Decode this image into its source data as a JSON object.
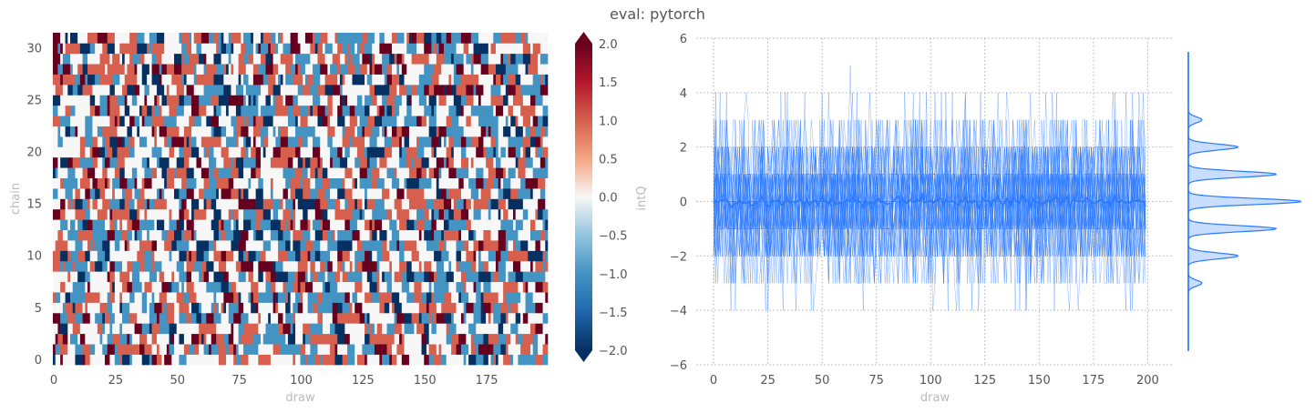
{
  "figure": {
    "suptitle": "eval: pytorch"
  },
  "chart_data": [
    {
      "type": "heatmap",
      "xlabel": "draw",
      "ylabel": "chain",
      "xticks": [
        0,
        25,
        50,
        75,
        100,
        125,
        150,
        175
      ],
      "yticks": [
        0,
        5,
        10,
        15,
        20,
        25,
        30
      ],
      "n_draws": 200,
      "n_chains": 32,
      "values_description_note": "",
      "colorbar": {
        "label": "intQ",
        "ticks": [
          2.0,
          1.5,
          1.0,
          0.5,
          0.0,
          -0.5,
          -1.0,
          -1.5,
          -2.0
        ],
        "tick_labels": [
          "2.0",
          "1.5",
          "1.0",
          "0.5",
          "0.0",
          "−0.5",
          "−1.0",
          "−1.5",
          "−2.0"
        ],
        "vmin": -2.0,
        "vmax": 2.0,
        "extend": "both",
        "colormap": [
          "#053061",
          "#2166ac",
          "#4393c3",
          "#92c5de",
          "#f7f7f7",
          "#f4a582",
          "#d6604d",
          "#b2182b",
          "#67001f"
        ]
      },
      "value_levels": [
        -2,
        -1,
        0,
        1,
        2
      ],
      "value_weights": [
        0.1,
        0.24,
        0.32,
        0.24,
        0.1
      ]
    },
    {
      "type": "line",
      "xlabel": "draw",
      "ylabel": "",
      "xlim": [
        0,
        199
      ],
      "ylim": [
        -6,
        6
      ],
      "xticks": [
        0,
        25,
        50,
        75,
        100,
        125,
        150,
        175,
        200
      ],
      "yticks": [
        -6,
        -4,
        -2,
        0,
        2,
        4,
        6
      ],
      "tick_labels_y": [
        "−6",
        "−4",
        "−2",
        "0",
        "2",
        "4",
        "6"
      ],
      "grid": true,
      "grid_style": "dotted",
      "n_chains": 32,
      "color": "#2979ff",
      "mean_series_value": 0,
      "marginal_kde": {
        "orientation": "vertical",
        "peaks": [
          {
            "y": 0,
            "density": 1.0
          },
          {
            "y": 1,
            "density": 0.78
          },
          {
            "y": -1,
            "density": 0.78
          },
          {
            "y": 2,
            "density": 0.44
          },
          {
            "y": -2,
            "density": 0.44
          },
          {
            "y": 3,
            "density": 0.12
          },
          {
            "y": -3,
            "density": 0.12
          }
        ],
        "range": [
          -5.5,
          5.5
        ],
        "color": "#2979ff"
      }
    }
  ]
}
